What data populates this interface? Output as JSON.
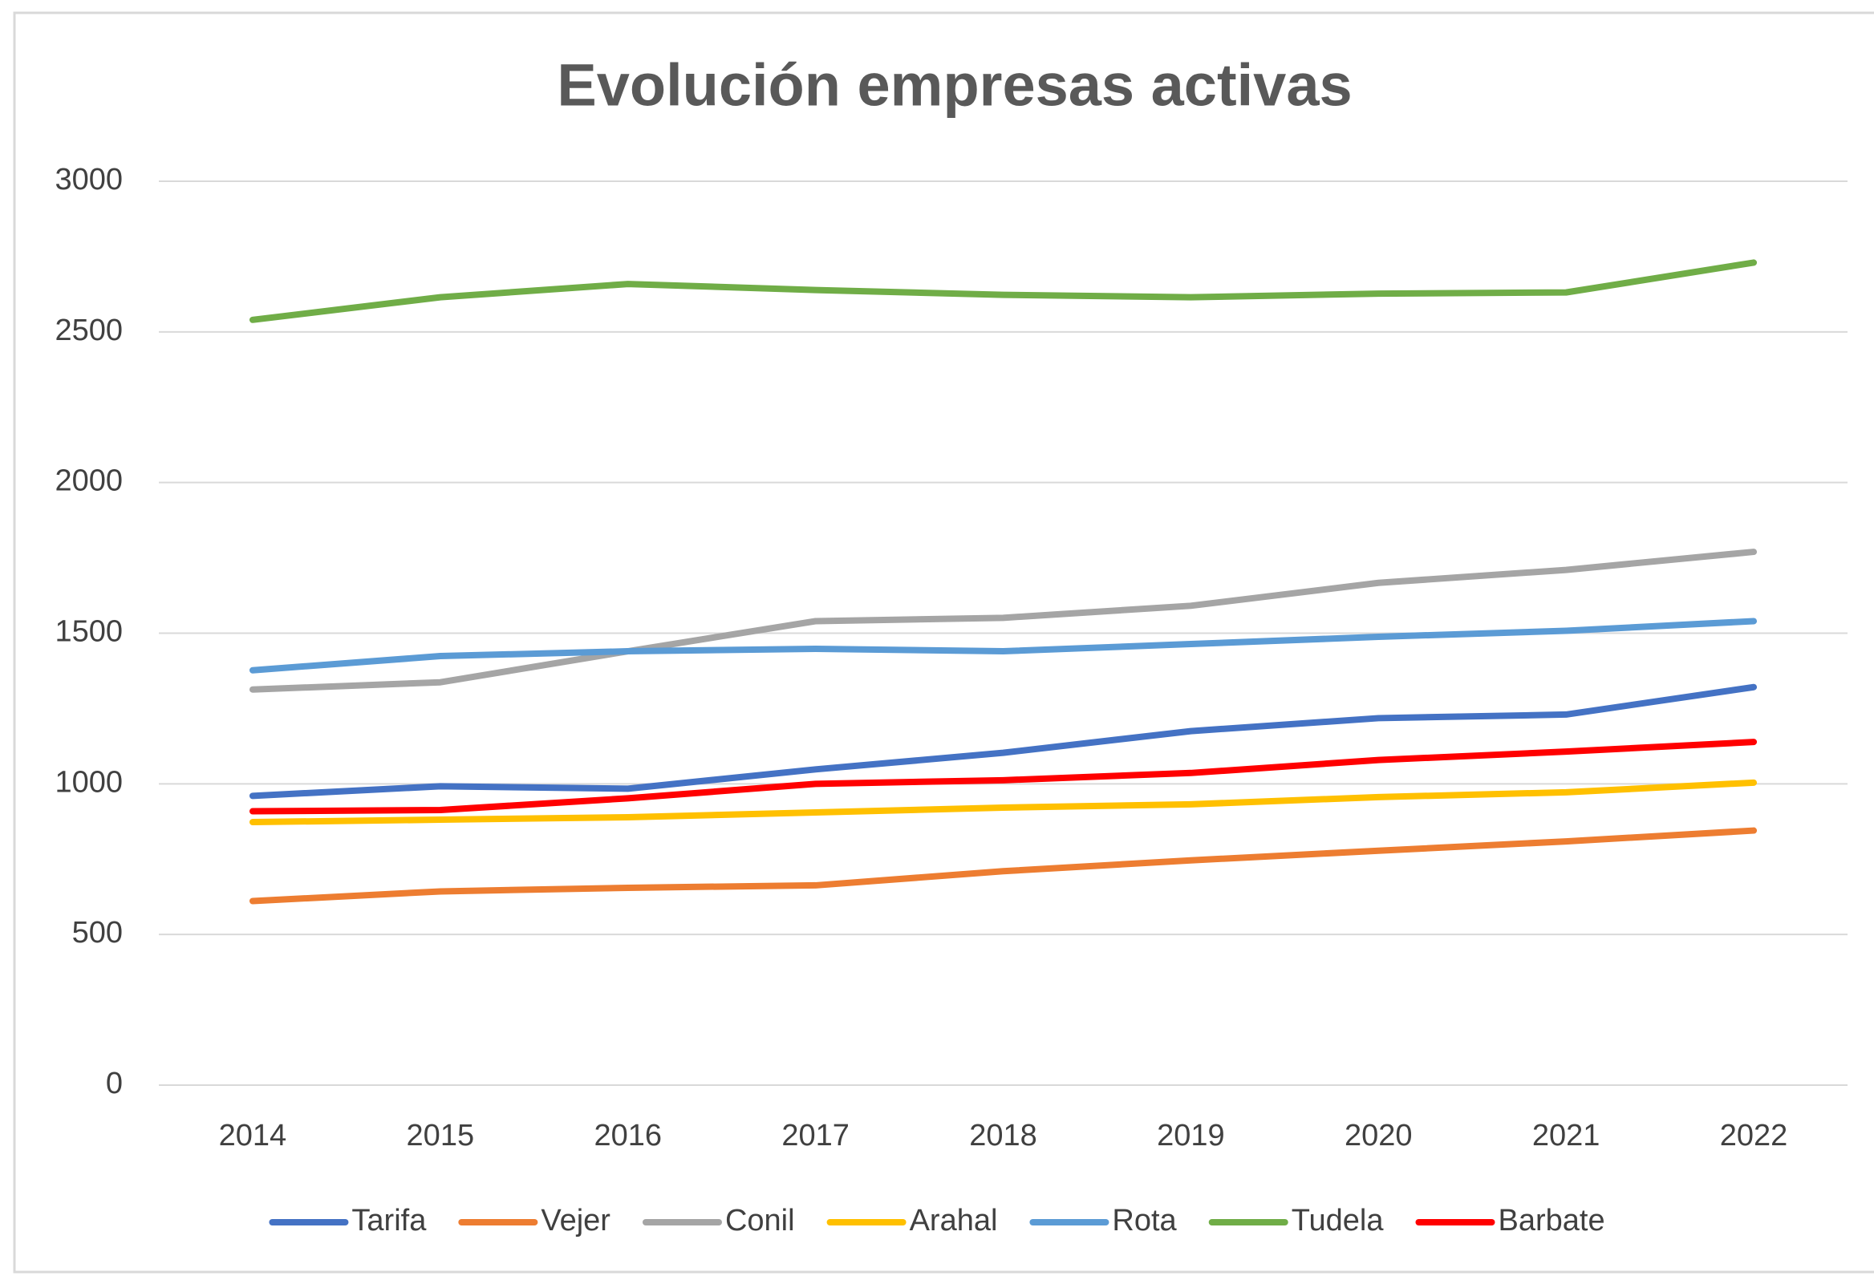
{
  "chart_data": {
    "type": "line",
    "title": "Evolución empresas activas",
    "categories": [
      "2014",
      "2015",
      "2016",
      "2017",
      "2018",
      "2019",
      "2020",
      "2021",
      "2022"
    ],
    "series": [
      {
        "name": "Tarifa",
        "color": "#4472c4",
        "values": [
          960,
          992,
          984,
          1048,
          1103,
          1175,
          1218,
          1230,
          1321
        ]
      },
      {
        "name": "Vejer",
        "color": "#ed7d31",
        "values": [
          611,
          643,
          655,
          663,
          710,
          746,
          778,
          809,
          845
        ]
      },
      {
        "name": "Conil",
        "color": "#a5a5a5",
        "values": [
          1313,
          1337,
          1440,
          1540,
          1551,
          1591,
          1667,
          1710,
          1770
        ]
      },
      {
        "name": "Arahal",
        "color": "#ffc000",
        "values": [
          873,
          881,
          889,
          905,
          921,
          932,
          956,
          972,
          1004
        ]
      },
      {
        "name": "Rota",
        "color": "#5b9bd5",
        "values": [
          1377,
          1424,
          1440,
          1448,
          1440,
          1464,
          1488,
          1508,
          1540
        ]
      },
      {
        "name": "Tudela",
        "color": "#70ad47",
        "values": [
          2540,
          2615,
          2659,
          2639,
          2623,
          2615,
          2627,
          2631,
          2730
        ]
      },
      {
        "name": "Barbate",
        "color": "#ff0000",
        "values": [
          909,
          913,
          952,
          1000,
          1012,
          1036,
          1079,
          1107,
          1139
        ]
      }
    ],
    "ylim": [
      0,
      3000
    ],
    "yticks": [
      0,
      500,
      1000,
      1500,
      2000,
      2500,
      3000
    ],
    "grid": true,
    "legend": "bottom"
  }
}
